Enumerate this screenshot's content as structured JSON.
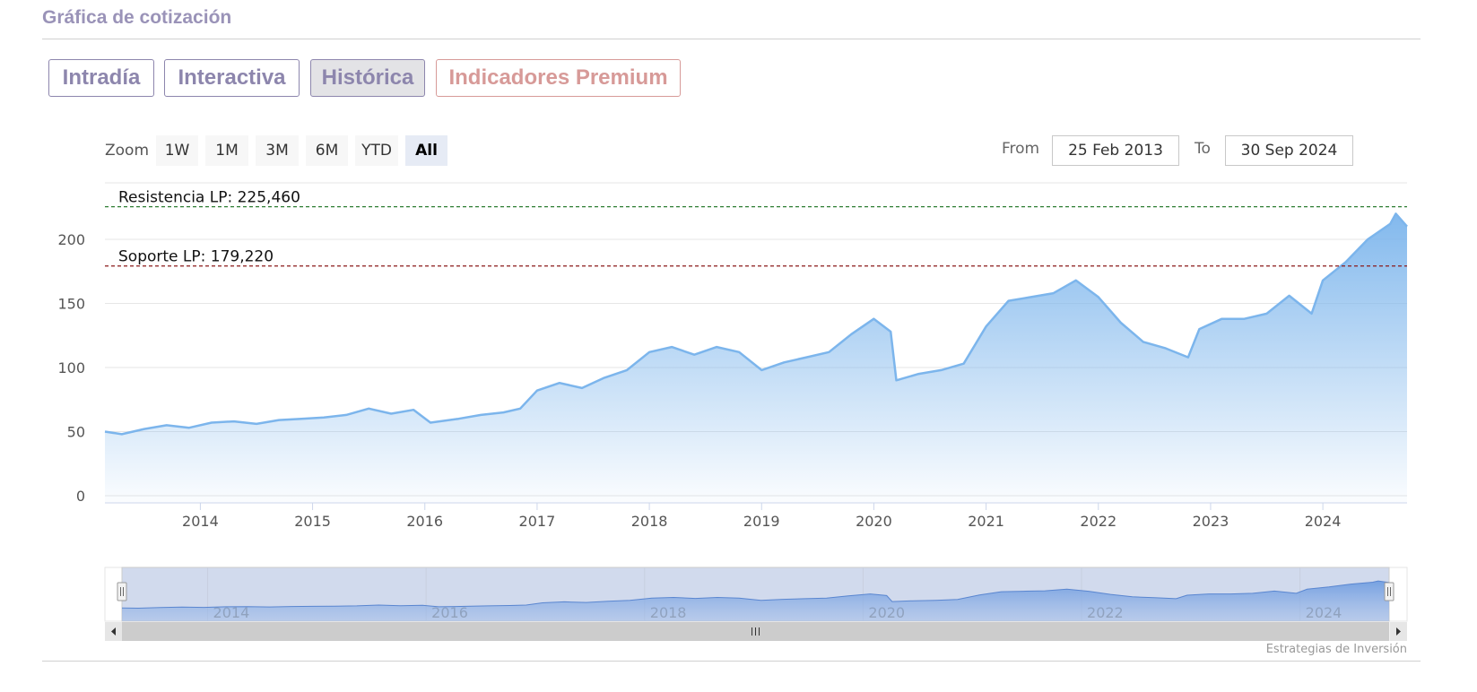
{
  "header": {
    "title": "Gráfica de cotización"
  },
  "tabs": [
    {
      "label": "Intradía",
      "active": false
    },
    {
      "label": "Interactiva",
      "active": false
    },
    {
      "label": "Histórica",
      "active": true
    },
    {
      "label": "Indicadores Premium",
      "active": false
    }
  ],
  "zoom": {
    "label": "Zoom",
    "buttons": [
      "1W",
      "1M",
      "3M",
      "6M",
      "YTD",
      "All"
    ],
    "selected": "All"
  },
  "range": {
    "from_label": "From",
    "from_value": "25 Feb 2013",
    "to_label": "To",
    "to_value": "30 Sep 2024"
  },
  "credit": "Estrategias de Inversión",
  "colors": {
    "line": "#7cb5ec",
    "resistance": "#2e7d32",
    "support": "#8b1a1a",
    "tab": "#8d86ad",
    "premium": "#d79a98"
  },
  "chart_data": {
    "type": "area",
    "x_range": [
      2013.15,
      2024.75
    ],
    "ylim": [
      0,
      250
    ],
    "y_ticks": [
      0,
      50,
      100,
      150,
      200
    ],
    "x_ticks": [
      2014,
      2015,
      2016,
      2017,
      2018,
      2019,
      2020,
      2021,
      2022,
      2023,
      2024
    ],
    "navigator_ticks": [
      2014,
      2016,
      2018,
      2020,
      2022,
      2024
    ],
    "grid": true,
    "legend": "none",
    "series": [
      {
        "points": [
          [
            2013.15,
            50
          ],
          [
            2013.3,
            48
          ],
          [
            2013.5,
            52
          ],
          [
            2013.7,
            55
          ],
          [
            2013.9,
            53
          ],
          [
            2014.1,
            57
          ],
          [
            2014.3,
            58
          ],
          [
            2014.5,
            56
          ],
          [
            2014.7,
            59
          ],
          [
            2014.9,
            60
          ],
          [
            2015.1,
            61
          ],
          [
            2015.3,
            63
          ],
          [
            2015.5,
            68
          ],
          [
            2015.7,
            64
          ],
          [
            2015.9,
            67
          ],
          [
            2016.05,
            57
          ],
          [
            2016.3,
            60
          ],
          [
            2016.5,
            63
          ],
          [
            2016.7,
            65
          ],
          [
            2016.85,
            68
          ],
          [
            2017.0,
            82
          ],
          [
            2017.2,
            88
          ],
          [
            2017.4,
            84
          ],
          [
            2017.6,
            92
          ],
          [
            2017.8,
            98
          ],
          [
            2018.0,
            112
          ],
          [
            2018.2,
            116
          ],
          [
            2018.4,
            110
          ],
          [
            2018.6,
            116
          ],
          [
            2018.8,
            112
          ],
          [
            2019.0,
            98
          ],
          [
            2019.2,
            104
          ],
          [
            2019.4,
            108
          ],
          [
            2019.6,
            112
          ],
          [
            2019.8,
            126
          ],
          [
            2020.0,
            138
          ],
          [
            2020.15,
            128
          ],
          [
            2020.2,
            90
          ],
          [
            2020.4,
            95
          ],
          [
            2020.6,
            98
          ],
          [
            2020.8,
            103
          ],
          [
            2021.0,
            132
          ],
          [
            2021.2,
            152
          ],
          [
            2021.4,
            155
          ],
          [
            2021.6,
            158
          ],
          [
            2021.8,
            168
          ],
          [
            2022.0,
            155
          ],
          [
            2022.2,
            135
          ],
          [
            2022.4,
            120
          ],
          [
            2022.6,
            115
          ],
          [
            2022.8,
            108
          ],
          [
            2022.9,
            130
          ],
          [
            2023.1,
            138
          ],
          [
            2023.3,
            138
          ],
          [
            2023.5,
            142
          ],
          [
            2023.7,
            156
          ],
          [
            2023.9,
            142
          ],
          [
            2024.0,
            168
          ],
          [
            2024.2,
            182
          ],
          [
            2024.4,
            200
          ],
          [
            2024.6,
            212
          ],
          [
            2024.65,
            220
          ],
          [
            2024.75,
            210
          ]
        ]
      }
    ],
    "annotations": [
      {
        "label": "Resistencia LP: 225,460",
        "value": 225.46
      },
      {
        "label": "Soporte LP: 179,220",
        "value": 179.22
      }
    ]
  }
}
